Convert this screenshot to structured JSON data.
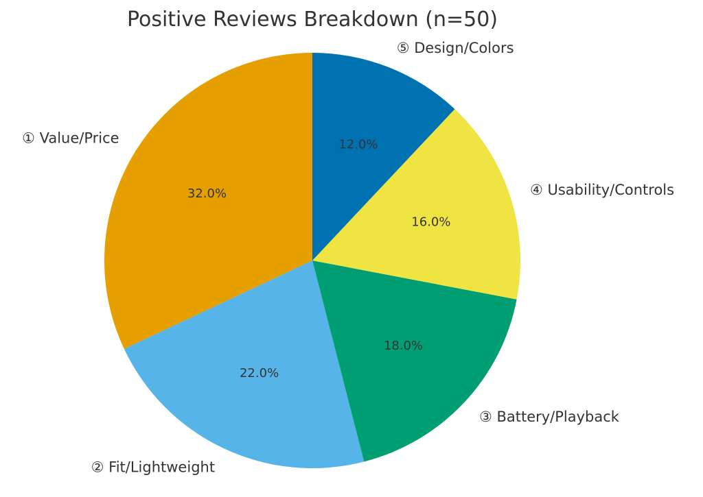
{
  "chart_data": {
    "type": "pie",
    "title": "Positive Reviews Breakdown (n=50)",
    "start_angle_deg": 90,
    "direction": "counterclockwise",
    "slices": [
      {
        "label": "① Value/Price",
        "value": 32.0,
        "pct_label": "32.0%",
        "color": "#E69F00"
      },
      {
        "label": "② Fit/Lightweight",
        "value": 22.0,
        "pct_label": "22.0%",
        "color": "#56B4E9"
      },
      {
        "label": "③ Battery/Playback",
        "value": 18.0,
        "pct_label": "18.0%",
        "color": "#009E73"
      },
      {
        "label": "④ Usability/Controls",
        "value": 16.0,
        "pct_label": "16.0%",
        "color": "#F0E442"
      },
      {
        "label": "⑤ Design/Colors",
        "value": 12.0,
        "pct_label": "12.0%",
        "color": "#0072B2"
      }
    ]
  }
}
